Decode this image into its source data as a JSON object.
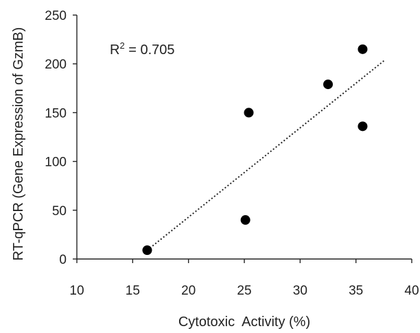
{
  "chart_data": {
    "type": "scatter",
    "title": "",
    "xlabel": "Cytotoxic  Activity (%)",
    "ylabel": "RT-qPCR (Gene Expression of GzmB)",
    "xlim": [
      10,
      40
    ],
    "ylim": [
      0,
      250
    ],
    "xticks": [
      "10",
      "15",
      "20",
      "25",
      "30",
      "35",
      "40"
    ],
    "yticks": [
      "0",
      "50",
      "100",
      "150",
      "200",
      "250"
    ],
    "grid": false,
    "legend": "none",
    "points": [
      {
        "x": 16.3,
        "y": 9
      },
      {
        "x": 25.1,
        "y": 40
      },
      {
        "x": 25.4,
        "y": 150
      },
      {
        "x": 32.5,
        "y": 179
      },
      {
        "x": 35.6,
        "y": 136
      },
      {
        "x": 35.6,
        "y": 215
      }
    ],
    "trendline": {
      "type": "linear",
      "style": "dotted",
      "x_range": [
        16.3,
        37.6
      ],
      "y_start": 9,
      "y_end": 204
    },
    "annotation": {
      "base": "R",
      "exponent": "2",
      "rest": " = 0.705"
    },
    "colors": {
      "marker": "#000000",
      "axis": "#222222",
      "trendline": "#222222"
    }
  }
}
